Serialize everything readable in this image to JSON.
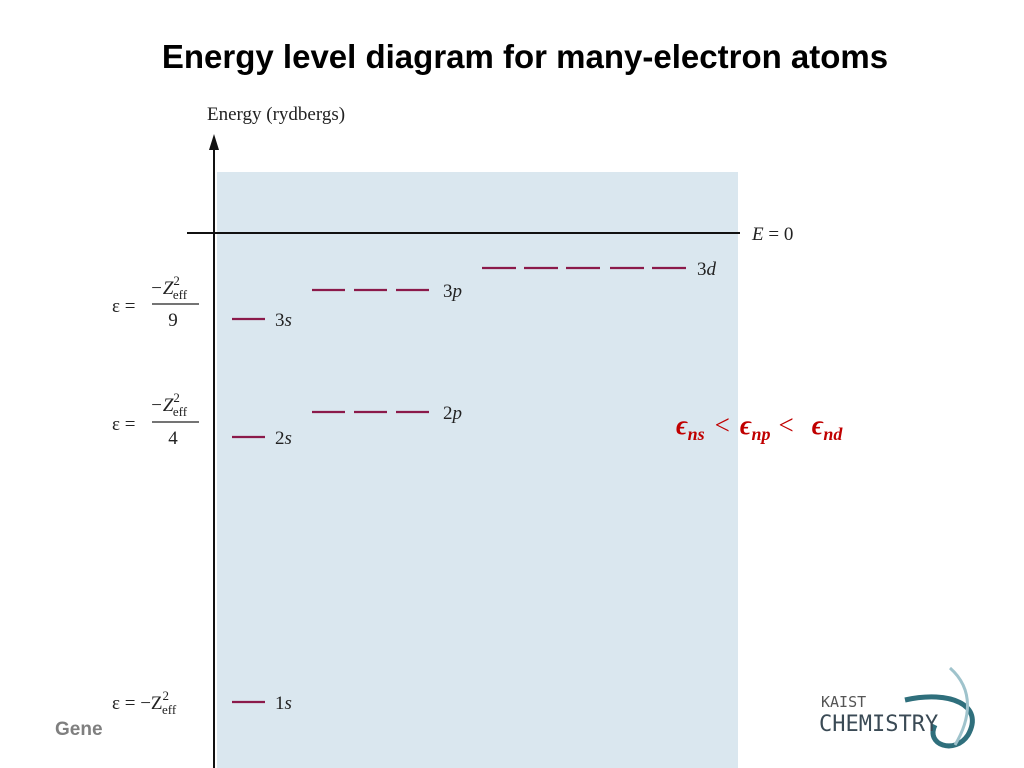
{
  "title": "Energy level diagram for many-electron atoms",
  "diagram": {
    "axis_label": "Energy (rydbergs)",
    "zero_label": {
      "symbol": "E",
      "rest": "= 0"
    },
    "levels": [
      {
        "n": "1",
        "l": "s"
      },
      {
        "n": "2",
        "l": "s"
      },
      {
        "n": "3",
        "l": "s"
      },
      {
        "n": "2",
        "l": "p"
      },
      {
        "n": "3",
        "l": "p"
      },
      {
        "n": "3",
        "l": "d"
      }
    ],
    "energy_labels": [
      {
        "lhs": "ε =",
        "sign": "−Z",
        "sup": "2",
        "sub": "eff",
        "denominator": "9"
      },
      {
        "lhs": "ε =",
        "sign": "−Z",
        "sup": "2",
        "sub": "eff",
        "denominator": "4"
      },
      {
        "lhs": "ε = −Z",
        "sup": "2",
        "sub": "eff"
      }
    ]
  },
  "inequality": [
    "ϵ",
    "ns",
    "<",
    "ϵ",
    "np",
    "<",
    "ϵ",
    "nd"
  ],
  "footer": "Gene",
  "logo": {
    "top": "KAIST",
    "bottom": "CHEMISTRY"
  }
}
